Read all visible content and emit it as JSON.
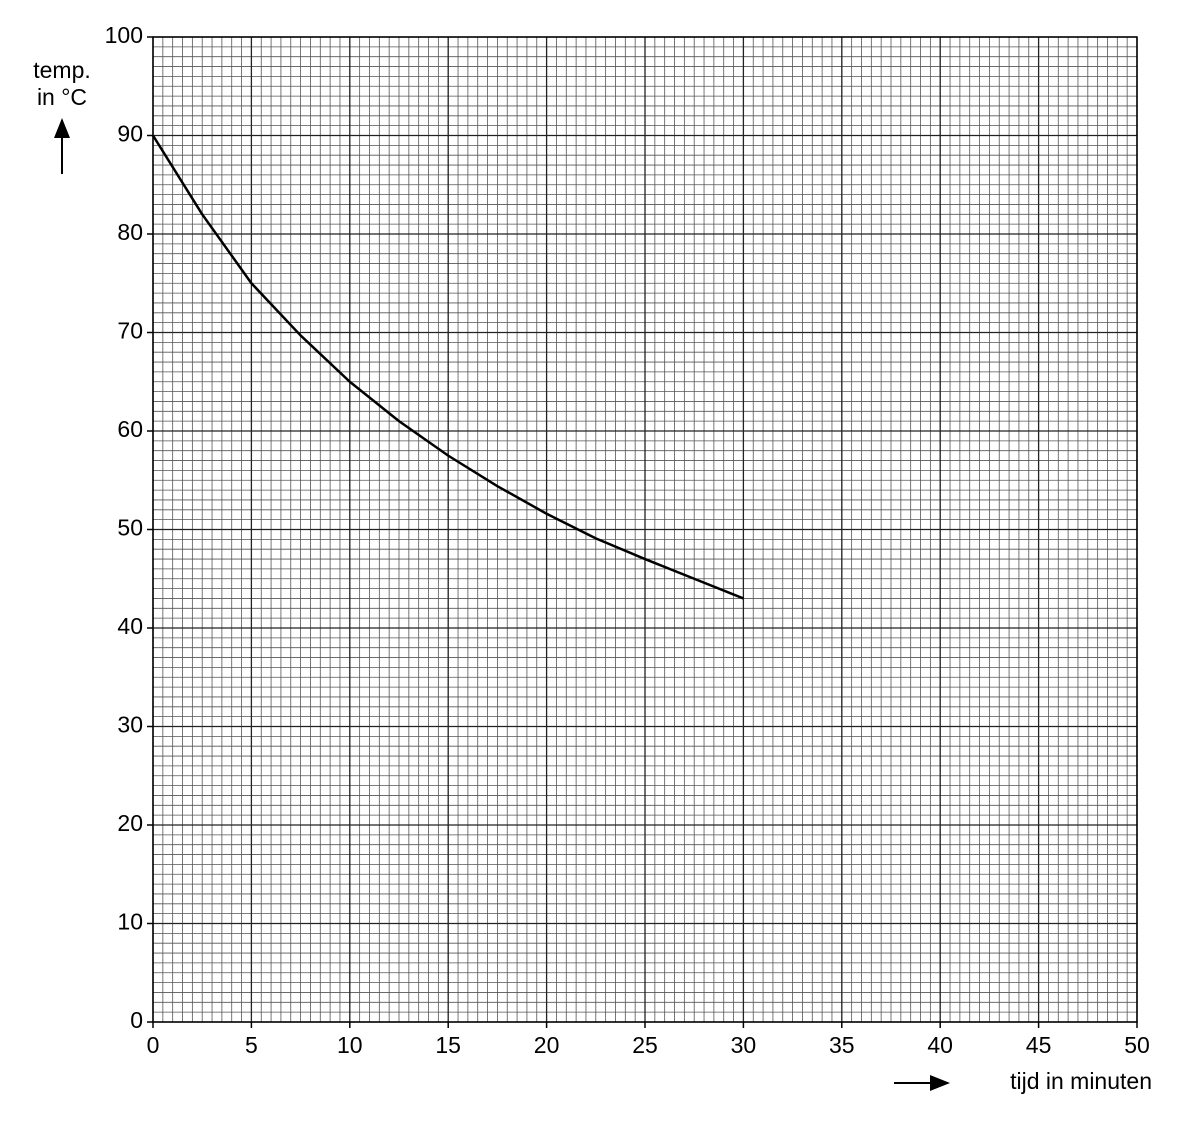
{
  "chart_data": {
    "type": "line",
    "ylabel": [
      "temp.",
      "in °C"
    ],
    "xlabel": "tijd in minuten",
    "x": [
      0,
      2.5,
      5,
      7.5,
      10,
      12.5,
      15,
      17.5,
      20,
      22.5,
      25,
      27.5,
      30
    ],
    "series": [
      {
        "color": "#000000",
        "values": [
          90,
          82,
          75,
          69.7,
          65,
          61,
          57.5,
          54.4,
          51.6,
          49.1,
          47,
          45,
          43
        ]
      }
    ],
    "xlim": [
      0,
      50
    ],
    "xticks": [
      0,
      5,
      10,
      15,
      20,
      25,
      30,
      35,
      40,
      45,
      50
    ],
    "ylim": [
      0,
      100
    ],
    "yticks": [
      0,
      10,
      20,
      30,
      40,
      50,
      60,
      70,
      80,
      90,
      100
    ],
    "grid": true
  }
}
